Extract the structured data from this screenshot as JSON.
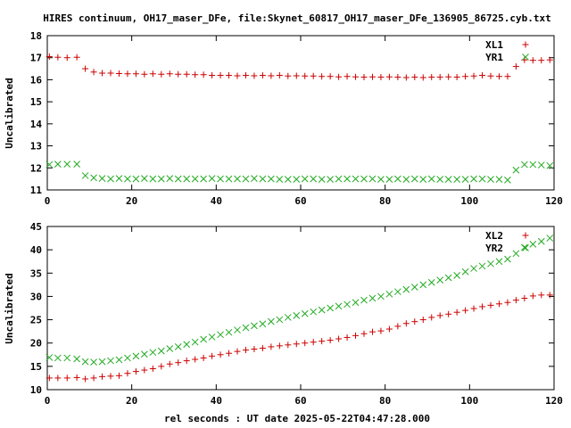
{
  "header": {
    "title": "HIRES continuum, OH17_maser_DFe, file:Skynet_60817_OH17_maser_DFe_136905_86725.cyb.txt",
    "xlabel": "rel seconds : UT date 2025-05-22T04:47:28.000"
  },
  "colors": {
    "xl": "#cc0000",
    "yr": "#22aa22",
    "axis": "#000000"
  },
  "chart_data": [
    {
      "type": "scatter",
      "ylabel": "Uncalibrated",
      "xlim": [
        0,
        120
      ],
      "ylim": [
        11,
        18
      ],
      "xticks": [
        0,
        20,
        40,
        60,
        80,
        100,
        120
      ],
      "yticks": [
        11,
        12,
        13,
        14,
        15,
        16,
        17,
        18
      ],
      "legend_position": "top-right",
      "series": [
        {
          "name": "XL1",
          "marker": "plus",
          "color": "#cc0000",
          "x": [
            0.5,
            2.5,
            4.7,
            7,
            9,
            11,
            13,
            15,
            17,
            19,
            21,
            23,
            25,
            27,
            29,
            31,
            33,
            35,
            37,
            39,
            41,
            43,
            45,
            47,
            49,
            51,
            53,
            55,
            57,
            59,
            61,
            63,
            65,
            67,
            69,
            71,
            73,
            75,
            77,
            79,
            81,
            83,
            85,
            87,
            89,
            91,
            93,
            95,
            97,
            99,
            101,
            103,
            105,
            107,
            109,
            111,
            113,
            115,
            117,
            119
          ],
          "y": [
            17.05,
            17.02,
            17.0,
            17.02,
            16.5,
            16.35,
            16.3,
            16.3,
            16.28,
            16.27,
            16.27,
            16.25,
            16.27,
            16.25,
            16.27,
            16.25,
            16.25,
            16.23,
            16.23,
            16.2,
            16.2,
            16.2,
            16.18,
            16.2,
            16.18,
            16.2,
            16.18,
            16.2,
            16.17,
            16.18,
            16.17,
            16.17,
            16.15,
            16.15,
            16.13,
            16.15,
            16.13,
            16.12,
            16.13,
            16.12,
            16.13,
            16.12,
            16.1,
            16.12,
            16.1,
            16.12,
            16.12,
            16.13,
            16.12,
            16.15,
            16.17,
            16.2,
            16.17,
            16.15,
            16.15,
            16.6,
            16.9,
            16.88,
            16.88,
            16.9
          ]
        },
        {
          "name": "YR1",
          "marker": "cross",
          "color": "#22aa22",
          "x": [
            0.5,
            2.5,
            4.7,
            7,
            9,
            11,
            13,
            15,
            17,
            19,
            21,
            23,
            25,
            27,
            29,
            31,
            33,
            35,
            37,
            39,
            41,
            43,
            45,
            47,
            49,
            51,
            53,
            55,
            57,
            59,
            61,
            63,
            65,
            67,
            69,
            71,
            73,
            75,
            77,
            79,
            81,
            83,
            85,
            87,
            89,
            91,
            93,
            95,
            97,
            99,
            101,
            103,
            105,
            107,
            109,
            111,
            113,
            115,
            117,
            119
          ],
          "y": [
            12.15,
            12.17,
            12.17,
            12.17,
            11.65,
            11.55,
            11.52,
            11.5,
            11.52,
            11.5,
            11.5,
            11.52,
            11.5,
            11.5,
            11.52,
            11.5,
            11.5,
            11.5,
            11.5,
            11.52,
            11.5,
            11.5,
            11.5,
            11.5,
            11.52,
            11.5,
            11.5,
            11.48,
            11.48,
            11.48,
            11.5,
            11.5,
            11.48,
            11.48,
            11.5,
            11.5,
            11.5,
            11.5,
            11.5,
            11.48,
            11.48,
            11.5,
            11.48,
            11.5,
            11.48,
            11.5,
            11.48,
            11.48,
            11.48,
            11.48,
            11.5,
            11.5,
            11.48,
            11.48,
            11.45,
            11.9,
            12.15,
            12.15,
            12.13,
            12.1
          ]
        }
      ]
    },
    {
      "type": "scatter",
      "ylabel": "Uncalibrated",
      "xlim": [
        0,
        120
      ],
      "ylim": [
        10,
        45
      ],
      "xticks": [
        0,
        20,
        40,
        60,
        80,
        100,
        120
      ],
      "yticks": [
        10,
        15,
        20,
        25,
        30,
        35,
        40,
        45
      ],
      "legend_position": "top-right",
      "series": [
        {
          "name": "XL2",
          "marker": "plus",
          "color": "#cc0000",
          "x": [
            0.5,
            2.5,
            4.7,
            7,
            9,
            11,
            13,
            15,
            17,
            19,
            21,
            23,
            25,
            27,
            29,
            31,
            33,
            35,
            37,
            39,
            41,
            43,
            45,
            47,
            49,
            51,
            53,
            55,
            57,
            59,
            61,
            63,
            65,
            67,
            69,
            71,
            73,
            75,
            77,
            79,
            81,
            83,
            85,
            87,
            89,
            91,
            93,
            95,
            97,
            99,
            101,
            103,
            105,
            107,
            109,
            111,
            113,
            115,
            117,
            119
          ],
          "y": [
            12.5,
            12.5,
            12.5,
            12.6,
            12.3,
            12.5,
            12.8,
            12.9,
            13.0,
            13.5,
            13.9,
            14.2,
            14.5,
            15.0,
            15.5,
            15.8,
            16.2,
            16.5,
            16.8,
            17.2,
            17.5,
            17.8,
            18.2,
            18.5,
            18.7,
            18.9,
            19.2,
            19.4,
            19.6,
            19.8,
            20.0,
            20.2,
            20.4,
            20.6,
            20.9,
            21.2,
            21.6,
            22.0,
            22.4,
            22.6,
            23.0,
            23.6,
            24.2,
            24.6,
            25.0,
            25.5,
            25.9,
            26.2,
            26.6,
            27.0,
            27.4,
            27.8,
            28.1,
            28.4,
            28.7,
            29.2,
            29.6,
            30.1,
            30.3,
            30.3
          ]
        },
        {
          "name": "YR2",
          "marker": "cross",
          "color": "#22aa22",
          "x": [
            0.5,
            2.5,
            4.7,
            7,
            9,
            11,
            13,
            15,
            17,
            19,
            21,
            23,
            25,
            27,
            29,
            31,
            33,
            35,
            37,
            39,
            41,
            43,
            45,
            47,
            49,
            51,
            53,
            55,
            57,
            59,
            61,
            63,
            65,
            67,
            69,
            71,
            73,
            75,
            77,
            79,
            81,
            83,
            85,
            87,
            89,
            91,
            93,
            95,
            97,
            99,
            101,
            103,
            105,
            107,
            109,
            111,
            113,
            115,
            117,
            119
          ],
          "y": [
            16.9,
            16.8,
            16.8,
            16.6,
            16.0,
            15.9,
            16.0,
            16.2,
            16.4,
            16.8,
            17.2,
            17.6,
            18.0,
            18.3,
            18.8,
            19.2,
            19.7,
            20.2,
            20.8,
            21.3,
            21.8,
            22.3,
            22.8,
            23.3,
            23.7,
            24.1,
            24.6,
            25.0,
            25.5,
            25.9,
            26.3,
            26.7,
            27.1,
            27.5,
            27.9,
            28.3,
            28.7,
            29.2,
            29.6,
            30.0,
            30.5,
            31.0,
            31.5,
            32.0,
            32.5,
            33.0,
            33.5,
            34.0,
            34.5,
            35.3,
            36.0,
            36.5,
            37.0,
            37.5,
            38.0,
            39.2,
            40.5,
            41.2,
            41.8,
            42.5
          ]
        }
      ]
    }
  ]
}
